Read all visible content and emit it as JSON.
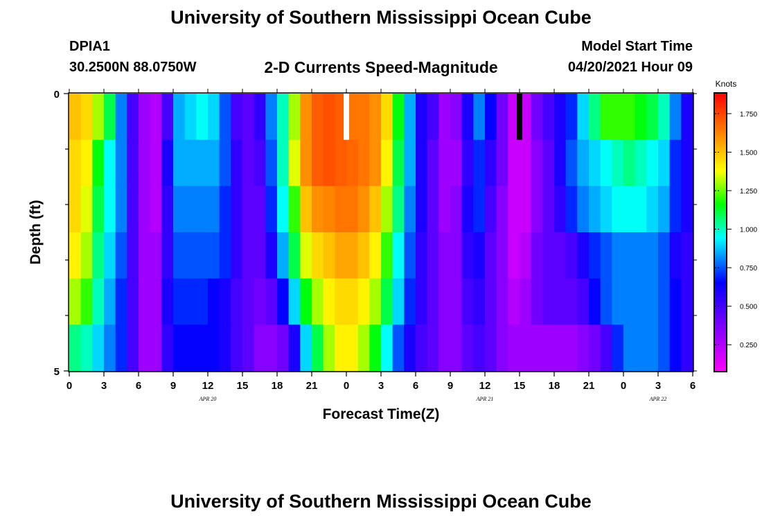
{
  "header": {
    "title": "University of Southern Mississippi Ocean Cube",
    "station": "DPIA1",
    "coords": "30.2500N  88.0750W",
    "subtitle": "2-D Currents Speed-Magnitude",
    "model_start_label": "Model Start Time",
    "model_start_value": "04/20/2021 Hour 09"
  },
  "footer": {
    "title": "University of Southern Mississippi Ocean Cube"
  },
  "chart_data": {
    "type": "heatmap",
    "xlabel": "Forecast Time(Z)",
    "ylabel": "Depth (ft)",
    "x_tick_labels": [
      "0",
      "3",
      "6",
      "9",
      "12",
      "15",
      "18",
      "21",
      "0",
      "3",
      "6",
      "9",
      "12",
      "15",
      "18",
      "21",
      "0",
      "3",
      "6"
    ],
    "date_labels": [
      {
        "label": "APR  20",
        "hour": 12
      },
      {
        "label": "APR  21",
        "hour": 36
      },
      {
        "label": "APR  22",
        "hour": 51
      }
    ],
    "xlim": [
      0,
      54
    ],
    "ylim": [
      0,
      5
    ],
    "y_tick_labels": [
      "0",
      "5"
    ],
    "colorbar": {
      "label": "Knots",
      "min": 0.08,
      "max": 1.88,
      "ticks": [
        "0.250",
        "0.500",
        "0.750",
        "1.000",
        "1.250",
        "1.500",
        "1.750"
      ],
      "tick_values": [
        0.25,
        0.5,
        0.75,
        1.0,
        1.25,
        1.5,
        1.75
      ]
    },
    "markers": [
      {
        "hour": 24,
        "color": "#ffffff"
      },
      {
        "hour": 39,
        "color": "#000000"
      }
    ],
    "layers": [
      [
        1.5,
        1.45,
        1.3,
        1.1,
        0.8,
        0.5,
        0.3,
        0.25,
        0.5,
        0.85,
        0.9,
        0.95,
        0.9,
        0.75,
        0.5,
        0.45,
        0.55,
        0.8,
        1.0,
        1.3,
        1.6,
        1.7,
        1.72,
        1.7,
        1.65,
        1.65,
        1.6,
        1.45,
        1.15,
        0.85,
        0.6,
        0.5,
        0.3,
        0.35,
        0.6,
        0.8,
        0.65,
        0.4,
        0.2,
        0.2,
        0.4,
        0.5,
        0.6,
        0.7,
        0.9,
        1.05,
        1.2,
        1.2,
        1.2,
        1.15,
        1.1,
        1.0,
        0.8,
        0.6
      ],
      [
        1.45,
        1.4,
        1.15,
        0.95,
        0.8,
        0.5,
        0.3,
        0.25,
        0.6,
        0.85,
        0.85,
        0.85,
        0.85,
        0.75,
        0.55,
        0.45,
        0.5,
        0.75,
        1.0,
        1.35,
        1.6,
        1.7,
        1.72,
        1.7,
        1.68,
        1.65,
        1.6,
        1.4,
        1.1,
        0.85,
        0.6,
        0.45,
        0.3,
        0.3,
        0.55,
        0.7,
        0.55,
        0.4,
        0.2,
        0.2,
        0.35,
        0.45,
        0.6,
        0.75,
        0.85,
        0.9,
        0.95,
        1.0,
        1.05,
        1.0,
        0.95,
        0.9,
        0.7,
        0.6
      ],
      [
        1.45,
        1.35,
        1.1,
        0.95,
        0.8,
        0.5,
        0.3,
        0.25,
        0.55,
        0.8,
        0.8,
        0.8,
        0.8,
        0.7,
        0.55,
        0.45,
        0.45,
        0.7,
        0.95,
        1.2,
        1.5,
        1.6,
        1.62,
        1.65,
        1.65,
        1.6,
        1.5,
        1.3,
        1.05,
        0.8,
        0.6,
        0.45,
        0.3,
        0.35,
        0.6,
        0.7,
        0.5,
        0.35,
        0.2,
        0.2,
        0.35,
        0.45,
        0.55,
        0.7,
        0.8,
        0.85,
        0.9,
        0.95,
        0.95,
        0.95,
        0.9,
        0.85,
        0.7,
        0.6
      ],
      [
        1.4,
        1.3,
        1.05,
        0.9,
        0.75,
        0.5,
        0.3,
        0.3,
        0.55,
        0.75,
        0.75,
        0.75,
        0.75,
        0.7,
        0.55,
        0.45,
        0.45,
        0.6,
        0.85,
        1.1,
        1.35,
        1.45,
        1.5,
        1.55,
        1.55,
        1.5,
        1.4,
        1.2,
        0.95,
        0.75,
        0.55,
        0.45,
        0.35,
        0.35,
        0.55,
        0.6,
        0.45,
        0.35,
        0.2,
        0.25,
        0.4,
        0.45,
        0.45,
        0.5,
        0.6,
        0.7,
        0.75,
        0.8,
        0.8,
        0.8,
        0.8,
        0.75,
        0.6,
        0.55
      ],
      [
        1.3,
        1.2,
        1.0,
        0.85,
        0.7,
        0.5,
        0.3,
        0.3,
        0.6,
        0.7,
        0.7,
        0.7,
        0.65,
        0.6,
        0.5,
        0.45,
        0.4,
        0.45,
        0.65,
        0.9,
        1.15,
        1.3,
        1.4,
        1.45,
        1.45,
        1.4,
        1.3,
        1.1,
        0.9,
        0.7,
        0.55,
        0.45,
        0.35,
        0.35,
        0.5,
        0.55,
        0.45,
        0.35,
        0.25,
        0.3,
        0.4,
        0.45,
        0.45,
        0.45,
        0.5,
        0.65,
        0.75,
        0.8,
        0.8,
        0.8,
        0.8,
        0.75,
        0.65,
        0.55
      ],
      [
        1.05,
        1.0,
        0.9,
        0.8,
        0.7,
        0.5,
        0.3,
        0.3,
        0.55,
        0.65,
        0.65,
        0.65,
        0.65,
        0.6,
        0.5,
        0.45,
        0.35,
        0.35,
        0.4,
        0.6,
        0.9,
        1.1,
        1.3,
        1.4,
        1.4,
        1.3,
        1.15,
        0.95,
        0.75,
        0.6,
        0.5,
        0.45,
        0.35,
        0.35,
        0.45,
        0.5,
        0.45,
        0.35,
        0.3,
        0.3,
        0.3,
        0.3,
        0.3,
        0.3,
        0.35,
        0.4,
        0.5,
        0.7,
        0.8,
        0.8,
        0.8,
        0.75,
        0.65,
        0.55
      ]
    ]
  }
}
